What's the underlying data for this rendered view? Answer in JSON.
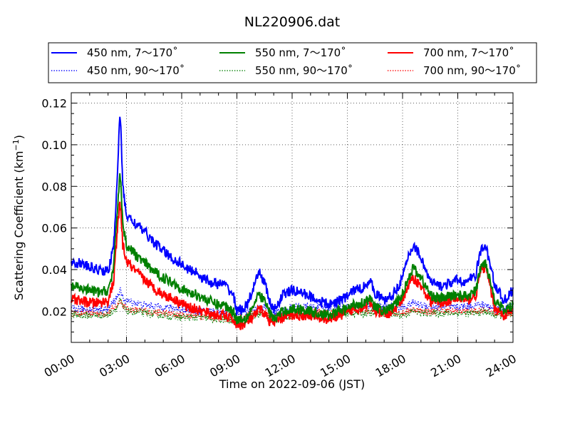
{
  "chart_data": {
    "type": "line",
    "title": "NL220906.dat",
    "xlabel": "Time on 2022-09-06 (JST)",
    "ylabel": "Scattering Coefficient (km",
    "ylabel_exponent": "−1",
    "ylabel_close": ")",
    "xlim": [
      0,
      24
    ],
    "ylim": [
      0.005,
      0.125
    ],
    "xticks": [
      0,
      3,
      6,
      9,
      12,
      15,
      18,
      21,
      24
    ],
    "xtick_labels": [
      "00:00",
      "03:00",
      "06:00",
      "09:00",
      "12:00",
      "15:00",
      "18:00",
      "21:00",
      "24:00"
    ],
    "yticks": [
      0.02,
      0.04,
      0.06,
      0.08,
      0.1,
      0.12
    ],
    "ytick_labels": [
      "0.02",
      "0.04",
      "0.06",
      "0.08",
      "0.10",
      "0.12"
    ],
    "grid": true,
    "legend_position": "top, above plot",
    "series": [
      {
        "name": "450 nm, 7～170˚",
        "color": "#0000ff",
        "style": "solid",
        "x": [
          0,
          0.5,
          1,
          1.5,
          2,
          2.3,
          2.5,
          2.65,
          2.8,
          3,
          3.5,
          4,
          4.5,
          5,
          5.5,
          6,
          6.3,
          6.8,
          7,
          7.5,
          8,
          8.3,
          8.8,
          9,
          9.5,
          10,
          10.2,
          10.5,
          10.8,
          11,
          11.5,
          12,
          12.5,
          13,
          13.5,
          14,
          14.5,
          15,
          15.3,
          15.8,
          16.2,
          16.5,
          17,
          17.5,
          18,
          18.3,
          18.6,
          19,
          19.5,
          20,
          20.5,
          21,
          21.5,
          22,
          22.2,
          22.5,
          23,
          23.5,
          24
        ],
        "values": [
          0.044,
          0.043,
          0.041,
          0.04,
          0.039,
          0.05,
          0.085,
          0.117,
          0.08,
          0.066,
          0.062,
          0.058,
          0.053,
          0.049,
          0.045,
          0.043,
          0.04,
          0.039,
          0.037,
          0.034,
          0.033,
          0.033,
          0.028,
          0.02,
          0.022,
          0.033,
          0.039,
          0.034,
          0.024,
          0.02,
          0.028,
          0.03,
          0.029,
          0.027,
          0.025,
          0.023,
          0.025,
          0.027,
          0.03,
          0.031,
          0.035,
          0.029,
          0.025,
          0.028,
          0.036,
          0.046,
          0.052,
          0.046,
          0.034,
          0.032,
          0.033,
          0.035,
          0.034,
          0.038,
          0.048,
          0.052,
          0.033,
          0.025,
          0.03
        ]
      },
      {
        "name": "550 nm, 7～170˚",
        "color": "#008000",
        "style": "solid",
        "x": [
          0,
          0.5,
          1,
          1.5,
          2,
          2.3,
          2.5,
          2.65,
          2.8,
          3,
          3.5,
          4,
          4.5,
          5,
          5.5,
          6,
          6.3,
          6.8,
          7,
          7.5,
          8,
          8.3,
          8.8,
          9,
          9.5,
          10,
          10.2,
          10.5,
          10.8,
          11,
          11.5,
          12,
          12.5,
          13,
          13.5,
          14,
          14.5,
          15,
          15.3,
          15.8,
          16.2,
          16.5,
          17,
          17.5,
          18,
          18.3,
          18.6,
          19,
          19.5,
          20,
          20.5,
          21,
          21.5,
          22,
          22.2,
          22.5,
          23,
          23.5,
          24
        ],
        "values": [
          0.032,
          0.031,
          0.03,
          0.029,
          0.03,
          0.04,
          0.068,
          0.088,
          0.062,
          0.052,
          0.047,
          0.043,
          0.039,
          0.036,
          0.034,
          0.031,
          0.029,
          0.028,
          0.027,
          0.025,
          0.023,
          0.023,
          0.02,
          0.016,
          0.017,
          0.024,
          0.028,
          0.025,
          0.019,
          0.016,
          0.02,
          0.021,
          0.021,
          0.02,
          0.019,
          0.018,
          0.02,
          0.021,
          0.023,
          0.024,
          0.026,
          0.022,
          0.02,
          0.022,
          0.028,
          0.036,
          0.041,
          0.036,
          0.028,
          0.026,
          0.027,
          0.028,
          0.027,
          0.03,
          0.04,
          0.044,
          0.026,
          0.02,
          0.023
        ]
      },
      {
        "name": "700 nm, 7～170˚",
        "color": "#ff0000",
        "style": "solid",
        "x": [
          0,
          0.5,
          1,
          1.5,
          2,
          2.3,
          2.5,
          2.65,
          2.8,
          3,
          3.5,
          4,
          4.5,
          5,
          5.5,
          6,
          6.3,
          6.8,
          7,
          7.5,
          8,
          8.3,
          8.8,
          9,
          9.5,
          10,
          10.2,
          10.5,
          10.8,
          11,
          11.5,
          12,
          12.5,
          13,
          13.5,
          14,
          14.5,
          15,
          15.3,
          15.8,
          16.2,
          16.5,
          17,
          17.5,
          18,
          18.3,
          18.6,
          19,
          19.5,
          20,
          20.5,
          21,
          21.5,
          22,
          22.2,
          22.5,
          23,
          23.5,
          24
        ],
        "values": [
          0.026,
          0.025,
          0.024,
          0.024,
          0.025,
          0.034,
          0.058,
          0.073,
          0.052,
          0.044,
          0.039,
          0.035,
          0.031,
          0.028,
          0.026,
          0.024,
          0.022,
          0.021,
          0.02,
          0.019,
          0.018,
          0.018,
          0.016,
          0.013,
          0.014,
          0.018,
          0.021,
          0.019,
          0.015,
          0.014,
          0.017,
          0.018,
          0.018,
          0.018,
          0.017,
          0.016,
          0.018,
          0.019,
          0.021,
          0.022,
          0.024,
          0.02,
          0.018,
          0.02,
          0.026,
          0.032,
          0.036,
          0.032,
          0.025,
          0.024,
          0.025,
          0.026,
          0.025,
          0.028,
          0.038,
          0.042,
          0.022,
          0.018,
          0.02
        ]
      },
      {
        "name": "450 nm, 90～170˚",
        "color": "#0000ff",
        "style": "dotted",
        "x": [
          0,
          1,
          2,
          2.5,
          2.65,
          2.8,
          3,
          4,
          5,
          6,
          7,
          8,
          9,
          10,
          10.5,
          11,
          12,
          13,
          14,
          15,
          16,
          17,
          18,
          18.6,
          19,
          20,
          21,
          22,
          22.5,
          23,
          24
        ],
        "values": [
          0.021,
          0.021,
          0.021,
          0.027,
          0.03,
          0.026,
          0.025,
          0.023,
          0.022,
          0.021,
          0.02,
          0.02,
          0.018,
          0.021,
          0.022,
          0.019,
          0.022,
          0.022,
          0.022,
          0.022,
          0.023,
          0.022,
          0.022,
          0.024,
          0.023,
          0.022,
          0.022,
          0.023,
          0.023,
          0.021,
          0.022
        ]
      },
      {
        "name": "550 nm, 90～170˚",
        "color": "#008000",
        "style": "dotted",
        "x": [
          0,
          1,
          2,
          2.5,
          2.65,
          2.8,
          3,
          4,
          5,
          6,
          7,
          8,
          9,
          10,
          10.5,
          11,
          12,
          13,
          14,
          15,
          16,
          17,
          18,
          18.6,
          19,
          20,
          21,
          22,
          22.5,
          23,
          24
        ],
        "values": [
          0.018,
          0.018,
          0.018,
          0.022,
          0.025,
          0.022,
          0.02,
          0.019,
          0.018,
          0.017,
          0.017,
          0.016,
          0.015,
          0.018,
          0.019,
          0.016,
          0.018,
          0.019,
          0.018,
          0.019,
          0.019,
          0.019,
          0.018,
          0.02,
          0.019,
          0.019,
          0.019,
          0.019,
          0.02,
          0.018,
          0.018
        ]
      },
      {
        "name": "700 nm, 90～170˚",
        "color": "#ff0000",
        "style": "dotted",
        "x": [
          0,
          1,
          2,
          2.5,
          2.65,
          2.8,
          3,
          4,
          5,
          6,
          7,
          8,
          9,
          10,
          10.5,
          11,
          12,
          13,
          14,
          15,
          16,
          17,
          18,
          18.6,
          19,
          20,
          21,
          22,
          22.5,
          23,
          24
        ],
        "values": [
          0.019,
          0.019,
          0.019,
          0.023,
          0.026,
          0.023,
          0.021,
          0.02,
          0.019,
          0.018,
          0.018,
          0.017,
          0.016,
          0.019,
          0.02,
          0.017,
          0.019,
          0.02,
          0.019,
          0.02,
          0.02,
          0.02,
          0.019,
          0.021,
          0.02,
          0.02,
          0.02,
          0.02,
          0.021,
          0.019,
          0.019
        ]
      }
    ]
  }
}
